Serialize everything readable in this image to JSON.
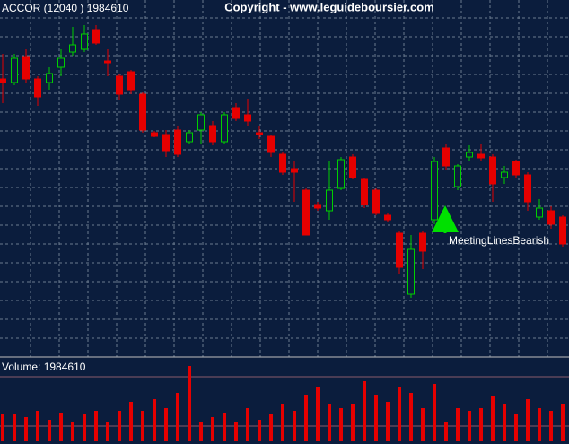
{
  "chart_data": {
    "type": "candlestick",
    "title": "ACCOR (12040 ) 1984610",
    "subtitle": "Copyright - www.leguideboursier.com",
    "annotation": "MeetingLinesBearish",
    "up_color": "#00d000",
    "down_color": "#e60000",
    "ylim": [
      0,
      400
    ],
    "open": [
      312,
      308,
      337,
      312,
      308,
      325,
      342,
      345,
      367,
      332,
      315,
      320,
      295,
      252,
      250,
      255,
      242,
      255,
      260,
      242,
      280,
      272,
      252,
      248,
      228,
      212,
      188,
      172,
      165,
      190,
      225,
      200,
      188,
      160,
      140,
      72,
      140,
      155,
      235,
      192,
      225,
      228,
      225,
      202,
      220,
      205,
      158,
      165,
      158
    ],
    "close": [
      308,
      335,
      312,
      292,
      318,
      335,
      350,
      362,
      352,
      330,
      295,
      300,
      255,
      248,
      232,
      228,
      252,
      272,
      242,
      272,
      268,
      265,
      250,
      230,
      208,
      208,
      138,
      168,
      188,
      222,
      202,
      172,
      162,
      155,
      102,
      122,
      120,
      220,
      215,
      215,
      230,
      224,
      195,
      208,
      205,
      175,
      168,
      150,
      128
    ],
    "high": [
      340,
      340,
      345,
      315,
      325,
      345,
      370,
      372,
      372,
      345,
      318,
      322,
      297,
      254,
      255,
      260,
      255,
      275,
      265,
      275,
      285,
      290,
      260,
      250,
      230,
      220,
      190,
      175,
      220,
      225,
      228,
      202,
      190,
      162,
      142,
      138,
      142,
      225,
      240,
      217,
      238,
      240,
      228,
      215,
      222,
      208,
      178,
      170,
      160
    ],
    "low": [
      285,
      305,
      308,
      282,
      300,
      315,
      338,
      342,
      350,
      315,
      288,
      295,
      252,
      247,
      225,
      225,
      240,
      240,
      238,
      240,
      265,
      260,
      245,
      225,
      205,
      175,
      138,
      165,
      155,
      188,
      200,
      168,
      160,
      152,
      95,
      68,
      100,
      150,
      210,
      188,
      220,
      220,
      175,
      195,
      202,
      165,
      155,
      145,
      125
    ],
    "volume": {
      "label": "Volume: 1984610",
      "color": "#e60000",
      "ylim": [
        0,
        92
      ],
      "values": [
        30,
        30,
        27,
        34,
        24,
        32,
        22,
        30,
        34,
        22,
        34,
        44,
        34,
        47,
        37,
        54,
        84,
        22,
        27,
        32,
        22,
        37,
        24,
        30,
        42,
        34,
        52,
        60,
        42,
        37,
        42,
        67,
        52,
        44,
        60,
        54,
        37,
        64,
        22,
        37,
        34,
        37,
        50,
        42,
        30,
        47,
        37,
        34,
        42
      ]
    }
  }
}
